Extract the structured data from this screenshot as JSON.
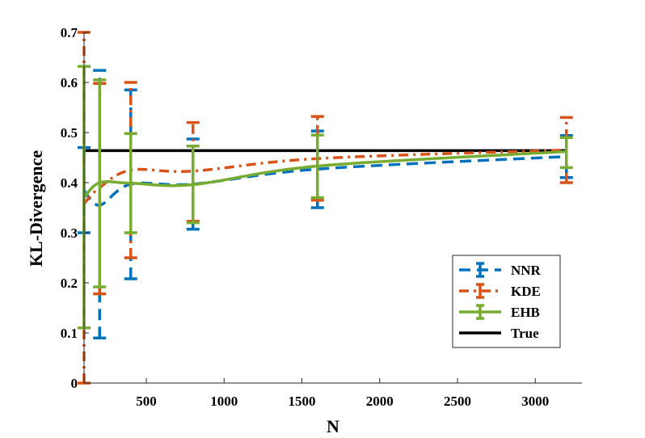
{
  "chart_data": {
    "type": "line",
    "title": "",
    "xlabel": "N",
    "ylabel": "KL-Divergence",
    "xlim": [
      100,
      3300
    ],
    "ylim": [
      0,
      0.7
    ],
    "x_ticks": [
      500,
      1000,
      1500,
      2000,
      2500,
      3000
    ],
    "y_ticks": [
      0,
      0.1,
      0.2,
      0.3,
      0.4,
      0.5,
      0.6,
      0.7
    ],
    "x_tick_labels": [
      "500",
      "1000",
      "1500",
      "2000",
      "2500",
      "3000"
    ],
    "y_tick_labels": [
      "0",
      "0.1",
      "0.2",
      "0.3",
      "0.4",
      "0.5",
      "0.6",
      "0.7"
    ],
    "grid": false,
    "legend_position": "bottom-right",
    "series": [
      {
        "name": "NNR",
        "color": "#0072BD",
        "style": "dashed",
        "x": [
          100,
          200,
          400,
          800,
          1600,
          3200
        ],
        "y": [
          0.385,
          0.355,
          0.397,
          0.397,
          0.427,
          0.452
        ],
        "err_low": [
          0.3,
          0.09,
          0.208,
          0.307,
          0.35,
          0.41
        ],
        "err_high": [
          0.47,
          0.624,
          0.585,
          0.487,
          0.503,
          0.494
        ]
      },
      {
        "name": "KDE",
        "color": "#D95319",
        "style": "dashdot",
        "x": [
          100,
          200,
          400,
          800,
          1600,
          3200
        ],
        "y": [
          0.358,
          0.39,
          0.425,
          0.423,
          0.448,
          0.465
        ],
        "err_low": [
          0.0,
          0.178,
          0.25,
          0.323,
          0.365,
          0.4
        ],
        "err_high": [
          0.7,
          0.598,
          0.6,
          0.52,
          0.532,
          0.53
        ]
      },
      {
        "name": "EHB",
        "color": "#77AC30",
        "style": "solid",
        "x": [
          100,
          200,
          400,
          800,
          1600,
          3200
        ],
        "y": [
          0.37,
          0.4,
          0.399,
          0.396,
          0.433,
          0.462
        ],
        "err_low": [
          0.11,
          0.192,
          0.3,
          0.32,
          0.37,
          0.43
        ],
        "err_high": [
          0.632,
          0.605,
          0.498,
          0.473,
          0.495,
          0.49
        ]
      },
      {
        "name": "True",
        "color": "#000000",
        "style": "solid",
        "x": [
          100,
          3200
        ],
        "y": [
          0.464,
          0.464
        ]
      }
    ]
  }
}
